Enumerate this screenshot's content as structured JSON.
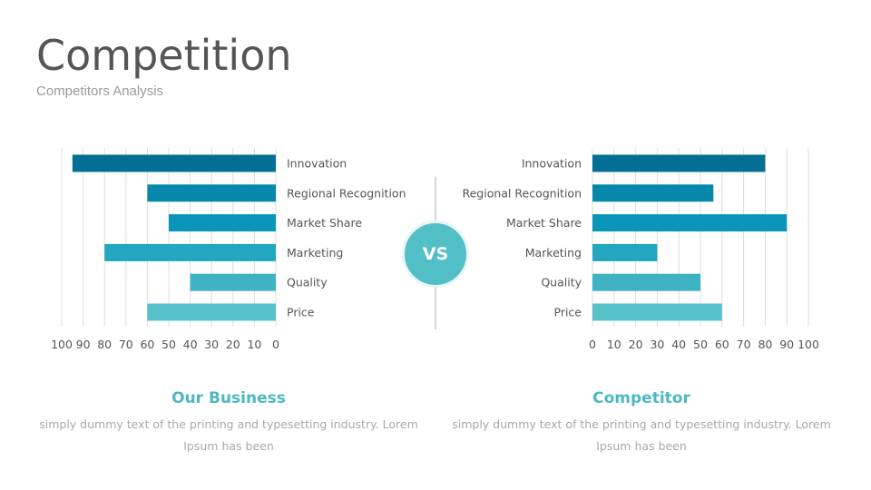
{
  "header": {
    "title": "Competition",
    "subtitle": "Competitors Analysis"
  },
  "vs_label": "VS",
  "colors": {
    "bars": [
      "#036f94",
      "#0787a9",
      "#0a96b8",
      "#23a6bf",
      "#3fb2c4",
      "#57c2ca"
    ],
    "grid": "#dcdcdc",
    "text": "#555555",
    "accent": "#4db8c2"
  },
  "chart_data": [
    {
      "type": "bar",
      "orientation": "horizontal",
      "direction": "right-to-left",
      "categories": [
        "Innovation",
        "Regional Recognition",
        "Market Share",
        "Marketing",
        "Quality",
        "Price"
      ],
      "values": [
        95,
        60,
        50,
        80,
        40,
        60
      ],
      "xlim": [
        0,
        100
      ],
      "xticks": [
        "100",
        "90",
        "80",
        "70",
        "60",
        "50",
        "40",
        "30",
        "20",
        "10",
        "0"
      ],
      "grid": true
    },
    {
      "type": "bar",
      "orientation": "horizontal",
      "direction": "left-to-right",
      "categories": [
        "Innovation",
        "Regional Recognition",
        "Market Share",
        "Marketing",
        "Quality",
        "Price"
      ],
      "values": [
        80,
        56,
        90,
        30,
        50,
        60
      ],
      "xlim": [
        0,
        100
      ],
      "xticks": [
        "0",
        "10",
        "20",
        "30",
        "40",
        "50",
        "60",
        "70",
        "80",
        "90",
        "100"
      ],
      "grid": true
    }
  ],
  "captions": {
    "left": {
      "title": "Our Business",
      "text_line1": "simply dummy text of the printing and typesetting industry. Lorem",
      "text_line2": "Ipsum has been"
    },
    "right": {
      "title": "Competitor",
      "text_line1": "simply dummy text of the printing and typesetting industry. Lorem",
      "text_line2": "Ipsum has been"
    }
  }
}
